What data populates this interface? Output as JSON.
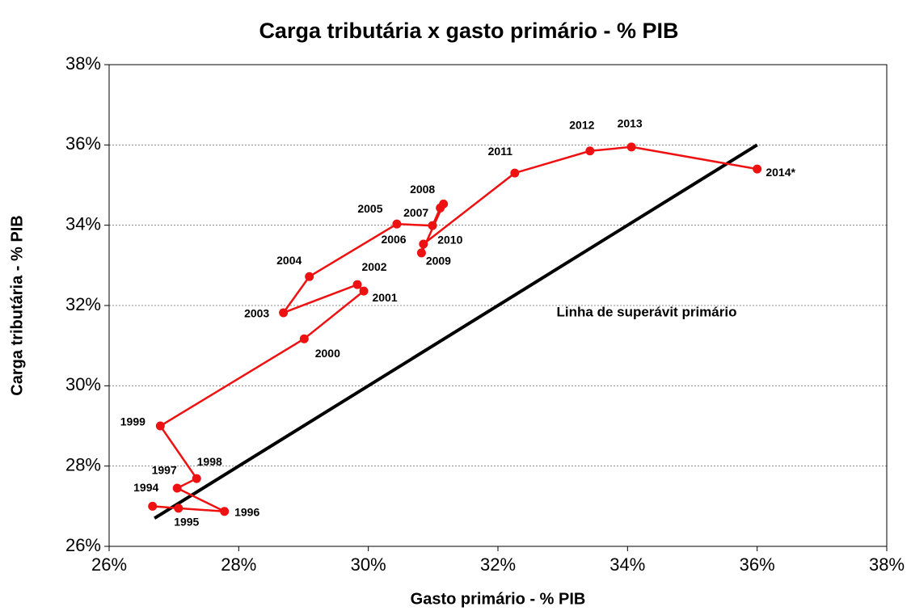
{
  "chart_data": {
    "type": "scatter",
    "title": "Carga tributária x gasto primário - % PIB",
    "xlabel": "Gasto primário - % PIB",
    "ylabel": "Carga tributária - % PIB",
    "xlim": [
      26,
      38
    ],
    "ylim": [
      26,
      38
    ],
    "xticks": [
      {
        "value": 26,
        "label": "26%"
      },
      {
        "value": 28,
        "label": "28%"
      },
      {
        "value": 30,
        "label": "30%"
      },
      {
        "value": 32,
        "label": "32%"
      },
      {
        "value": 34,
        "label": "34%"
      },
      {
        "value": 36,
        "label": "36%"
      },
      {
        "value": 38,
        "label": "38%"
      }
    ],
    "yticks": [
      {
        "value": 26,
        "label": "26%"
      },
      {
        "value": 28,
        "label": "28%"
      },
      {
        "value": 30,
        "label": "30%"
      },
      {
        "value": 32,
        "label": "32%"
      },
      {
        "value": 34,
        "label": "34%"
      },
      {
        "value": 36,
        "label": "36%"
      },
      {
        "value": 38,
        "label": "38%"
      }
    ],
    "grid": true,
    "color": "#ee1111",
    "labels": [
      "1994",
      "1995",
      "1996",
      "1997",
      "1998",
      "1999",
      "2000",
      "2001",
      "2002",
      "2003",
      "2004",
      "2005",
      "2006",
      "2007",
      "2008",
      "2009",
      "2010",
      "2011",
      "2012",
      "2013",
      "2014*"
    ],
    "x": [
      26.67,
      27.07,
      27.78,
      27.05,
      27.35,
      26.79,
      29.01,
      29.93,
      29.83,
      28.69,
      29.09,
      30.44,
      30.99,
      31.11,
      31.16,
      30.82,
      30.85,
      32.26,
      33.42,
      34.06,
      36.0
    ],
    "y": [
      27.0,
      26.95,
      26.87,
      27.45,
      27.69,
      29.0,
      31.17,
      32.36,
      32.52,
      31.82,
      32.72,
      34.03,
      33.99,
      34.43,
      34.53,
      33.31,
      33.53,
      35.3,
      35.85,
      35.95,
      35.4
    ],
    "reference_line": {
      "label": "Linha de superávit primário",
      "color": "#000000",
      "x": [
        26.7,
        36
      ],
      "y": [
        26.7,
        36
      ]
    }
  }
}
